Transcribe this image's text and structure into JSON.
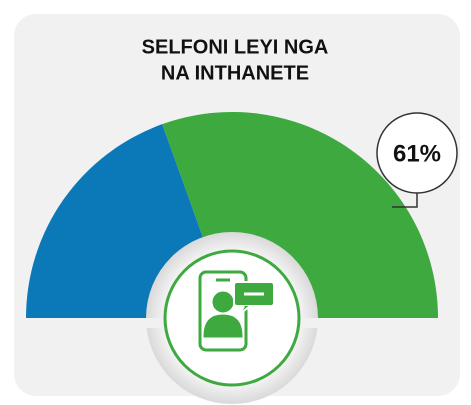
{
  "chart_data": {
    "type": "semi-donut",
    "title": [
      "SELFONI LEYI NGA",
      "NA INTHANETE"
    ],
    "values": [
      39,
      61
    ],
    "value_labels": [
      null,
      "61%"
    ],
    "colors": [
      "#0b78b8",
      "#3da93f"
    ]
  }
}
